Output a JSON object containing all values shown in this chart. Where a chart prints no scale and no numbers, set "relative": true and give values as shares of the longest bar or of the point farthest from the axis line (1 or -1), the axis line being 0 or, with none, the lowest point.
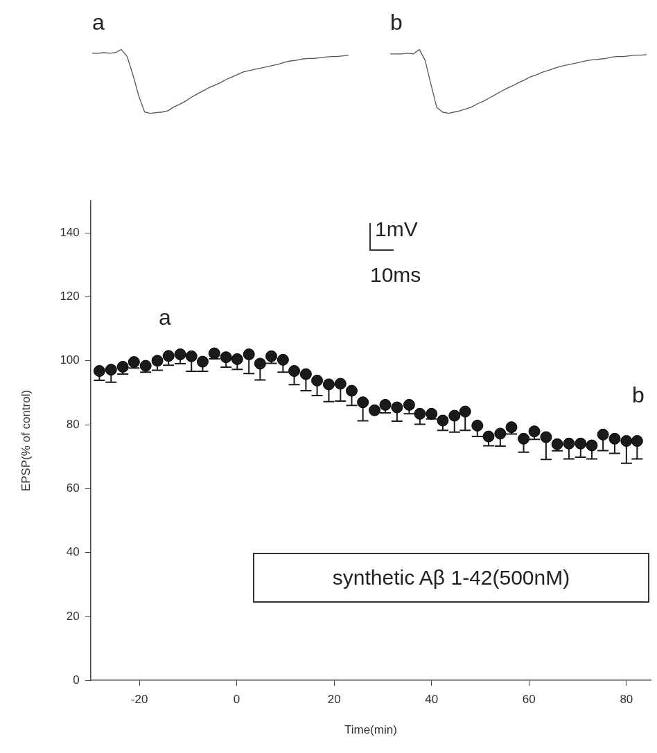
{
  "chart_data": [
    {
      "type": "line",
      "title": "a",
      "relative": true,
      "color": "#555555",
      "marker": "none",
      "categories": [
        null,
        null,
        null,
        null,
        null,
        null,
        null,
        null,
        null,
        null,
        null,
        null,
        null,
        null,
        null,
        null,
        null,
        null,
        null,
        null,
        null,
        null,
        null,
        null,
        null,
        null,
        null,
        null,
        null,
        null,
        null,
        null,
        null,
        null,
        null,
        null,
        null,
        null,
        null,
        null,
        null,
        null,
        null,
        null,
        null
      ],
      "values": [
        0.94,
        0.94,
        0.95,
        0.94,
        0.95,
        1.0,
        0.89,
        0.6,
        0.27,
        0.02,
        0,
        0.01,
        0.02,
        0.04,
        0.1,
        0.14,
        0.19,
        0.25,
        0.3,
        0.35,
        0.4,
        0.44,
        0.48,
        0.53,
        0.57,
        0.61,
        0.65,
        0.67,
        0.69,
        0.71,
        0.73,
        0.75,
        0.77,
        0.8,
        0.82,
        0.83,
        0.85,
        0.86,
        0.86,
        0.87,
        0.88,
        0.89,
        0.89,
        0.9,
        0.91
      ]
    },
    {
      "type": "line",
      "title": "b",
      "relative": true,
      "color": "#555555",
      "marker": "none",
      "categories": [
        null,
        null,
        null,
        null,
        null,
        null,
        null,
        null,
        null,
        null,
        null,
        null,
        null,
        null,
        null,
        null,
        null,
        null,
        null,
        null,
        null,
        null,
        null,
        null,
        null,
        null,
        null,
        null,
        null,
        null,
        null,
        null,
        null,
        null,
        null,
        null,
        null,
        null,
        null,
        null,
        null,
        null,
        null,
        null,
        null
      ],
      "values": [
        0.93,
        0.93,
        0.93,
        0.94,
        0.93,
        1.0,
        0.83,
        0.45,
        0.09,
        0.02,
        0,
        0.02,
        0.04,
        0.07,
        0.1,
        0.15,
        0.19,
        0.24,
        0.29,
        0.34,
        0.39,
        0.43,
        0.48,
        0.52,
        0.57,
        0.6,
        0.64,
        0.67,
        0.7,
        0.73,
        0.75,
        0.77,
        0.79,
        0.81,
        0.83,
        0.84,
        0.85,
        0.86,
        0.88,
        0.89,
        0.89,
        0.9,
        0.91,
        0.91,
        0.92
      ]
    },
    {
      "type": "scatter",
      "xlabel": "Time(min)",
      "ylabel": "EPSP(% of control)",
      "color": "#1a1a1a",
      "marker": "circle",
      "grid": false,
      "xlim": [
        -30,
        85
      ],
      "xticks": [
        -20,
        0,
        20,
        40,
        60,
        80
      ],
      "ylim": [
        0,
        150
      ],
      "yticks": [
        0,
        20,
        40,
        60,
        80,
        100,
        120,
        140
      ],
      "x": [
        -28.2,
        -25.8,
        -23.4,
        -21.1,
        -18.7,
        -16.3,
        -14.0,
        -11.6,
        -9.3,
        -7.0,
        -4.6,
        -2.2,
        0.1,
        2.5,
        4.8,
        7.1,
        9.5,
        11.8,
        14.2,
        16.5,
        18.9,
        21.3,
        23.6,
        25.9,
        28.3,
        30.5,
        32.9,
        35.4,
        37.6,
        40.0,
        42.3,
        44.7,
        46.9,
        49.4,
        51.7,
        54.1,
        56.4,
        58.9,
        61.1,
        63.5,
        65.8,
        68.2,
        70.6,
        72.9,
        75.2,
        77.6,
        80.0,
        82.2
      ],
      "values": [
        96.8,
        97.2,
        98.1,
        99.6,
        98.4,
        100.0,
        101.5,
        102.0,
        101.4,
        99.7,
        102.3,
        101.1,
        100.5,
        102.0,
        99.1,
        101.4,
        100.3,
        96.8,
        95.8,
        93.8,
        92.6,
        92.8,
        90.6,
        87.0,
        84.5,
        86.2,
        85.4,
        86.2,
        83.4,
        83.4,
        81.3,
        82.8,
        84.1,
        79.7,
        76.3,
        77.2,
        79.2,
        75.6,
        77.9,
        76.1,
        73.9,
        74.1,
        74.1,
        73.5,
        76.9,
        75.6,
        74.9,
        74.9
      ],
      "errors": [
        [
          93.9,
          96.8
        ],
        [
          93.3,
          97.2
        ],
        [
          95.8,
          98.1
        ],
        [
          97.7,
          99.6
        ],
        [
          96.4,
          98.4
        ],
        [
          97.0,
          100.0
        ],
        [
          98.6,
          101.5
        ],
        [
          99.1,
          102.0
        ],
        [
          96.7,
          101.4
        ],
        [
          96.7,
          99.7
        ],
        [
          100.6,
          102.3
        ],
        [
          98.0,
          101.1
        ],
        [
          97.3,
          100.5
        ],
        [
          96.0,
          102.0
        ],
        [
          94.0,
          99.1
        ],
        [
          99.2,
          101.4
        ],
        [
          96.4,
          100.3
        ],
        [
          92.5,
          96.8
        ],
        [
          90.6,
          95.8
        ],
        [
          89.1,
          93.8
        ],
        [
          87.2,
          92.6
        ],
        [
          87.4,
          92.8
        ],
        [
          86.0,
          90.6
        ],
        [
          81.2,
          87.0
        ],
        [
          84.5,
          84.5
        ],
        [
          83.7,
          86.2
        ],
        [
          81.1,
          85.4
        ],
        [
          83.4,
          86.2
        ],
        [
          80.1,
          83.4
        ],
        [
          81.8,
          83.4
        ],
        [
          78.2,
          81.3
        ],
        [
          77.7,
          82.8
        ],
        [
          78.2,
          84.1
        ],
        [
          76.3,
          79.7
        ],
        [
          73.4,
          76.3
        ],
        [
          73.3,
          77.2
        ],
        [
          77.1,
          79.2
        ],
        [
          71.4,
          75.6
        ],
        [
          75.4,
          77.9
        ],
        [
          69.1,
          76.1
        ],
        [
          71.8,
          73.9
        ],
        [
          69.3,
          74.1
        ],
        [
          69.8,
          74.1
        ],
        [
          69.3,
          73.5
        ],
        [
          71.9,
          76.9
        ],
        [
          71.0,
          75.6
        ],
        [
          67.9,
          74.9
        ],
        [
          69.3,
          74.9
        ]
      ],
      "annotations": [
        "a",
        "b",
        "1mV",
        "10ms",
        "synthetic Aβ 1-42(500nM)"
      ]
    }
  ]
}
